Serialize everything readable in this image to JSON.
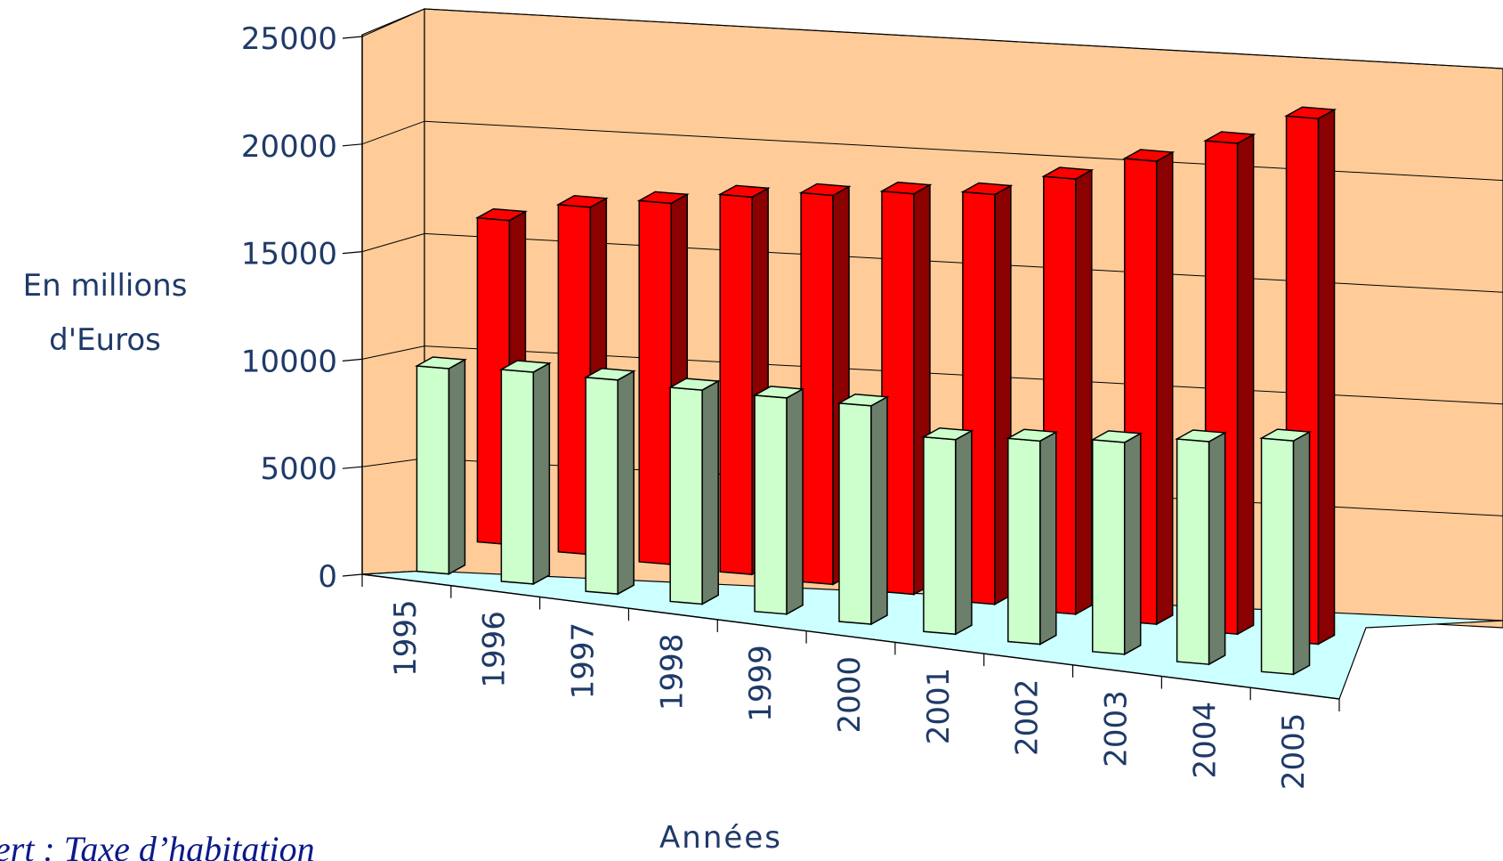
{
  "chart_data": {
    "type": "bar",
    "categories": [
      "1995",
      "1996",
      "1997",
      "1998",
      "1999",
      "2000",
      "2001",
      "2002",
      "2003",
      "2004",
      "2005"
    ],
    "series": [
      {
        "color": "#ccffcc",
        "values": [
          9500,
          9800,
          9900,
          9900,
          10000,
          10100,
          9000,
          9400,
          9800,
          10300,
          10800
        ]
      },
      {
        "color": "#ff0000",
        "values": [
          14000,
          15000,
          15600,
          16300,
          16800,
          17300,
          17700,
          18800,
          20000,
          21200,
          22700
        ]
      }
    ],
    "ylabel": "En millions d'Euros",
    "ylabel_lines": [
      "En millions",
      "d'Euros"
    ],
    "xlabel": "Années",
    "ylim": [
      0,
      25000
    ],
    "yticks": [
      "0",
      "5000",
      "10000",
      "15000",
      "20000",
      "25000"
    ],
    "grid": true,
    "legend_partial_text": "ert : Taxe d’habitation",
    "colors": {
      "back_wall": "#ffcc99",
      "floor": "#ccffff",
      "front_side_dark": "#6b7f6b",
      "red_side_dark": "#8b0000",
      "text": "#1f3a68"
    }
  }
}
